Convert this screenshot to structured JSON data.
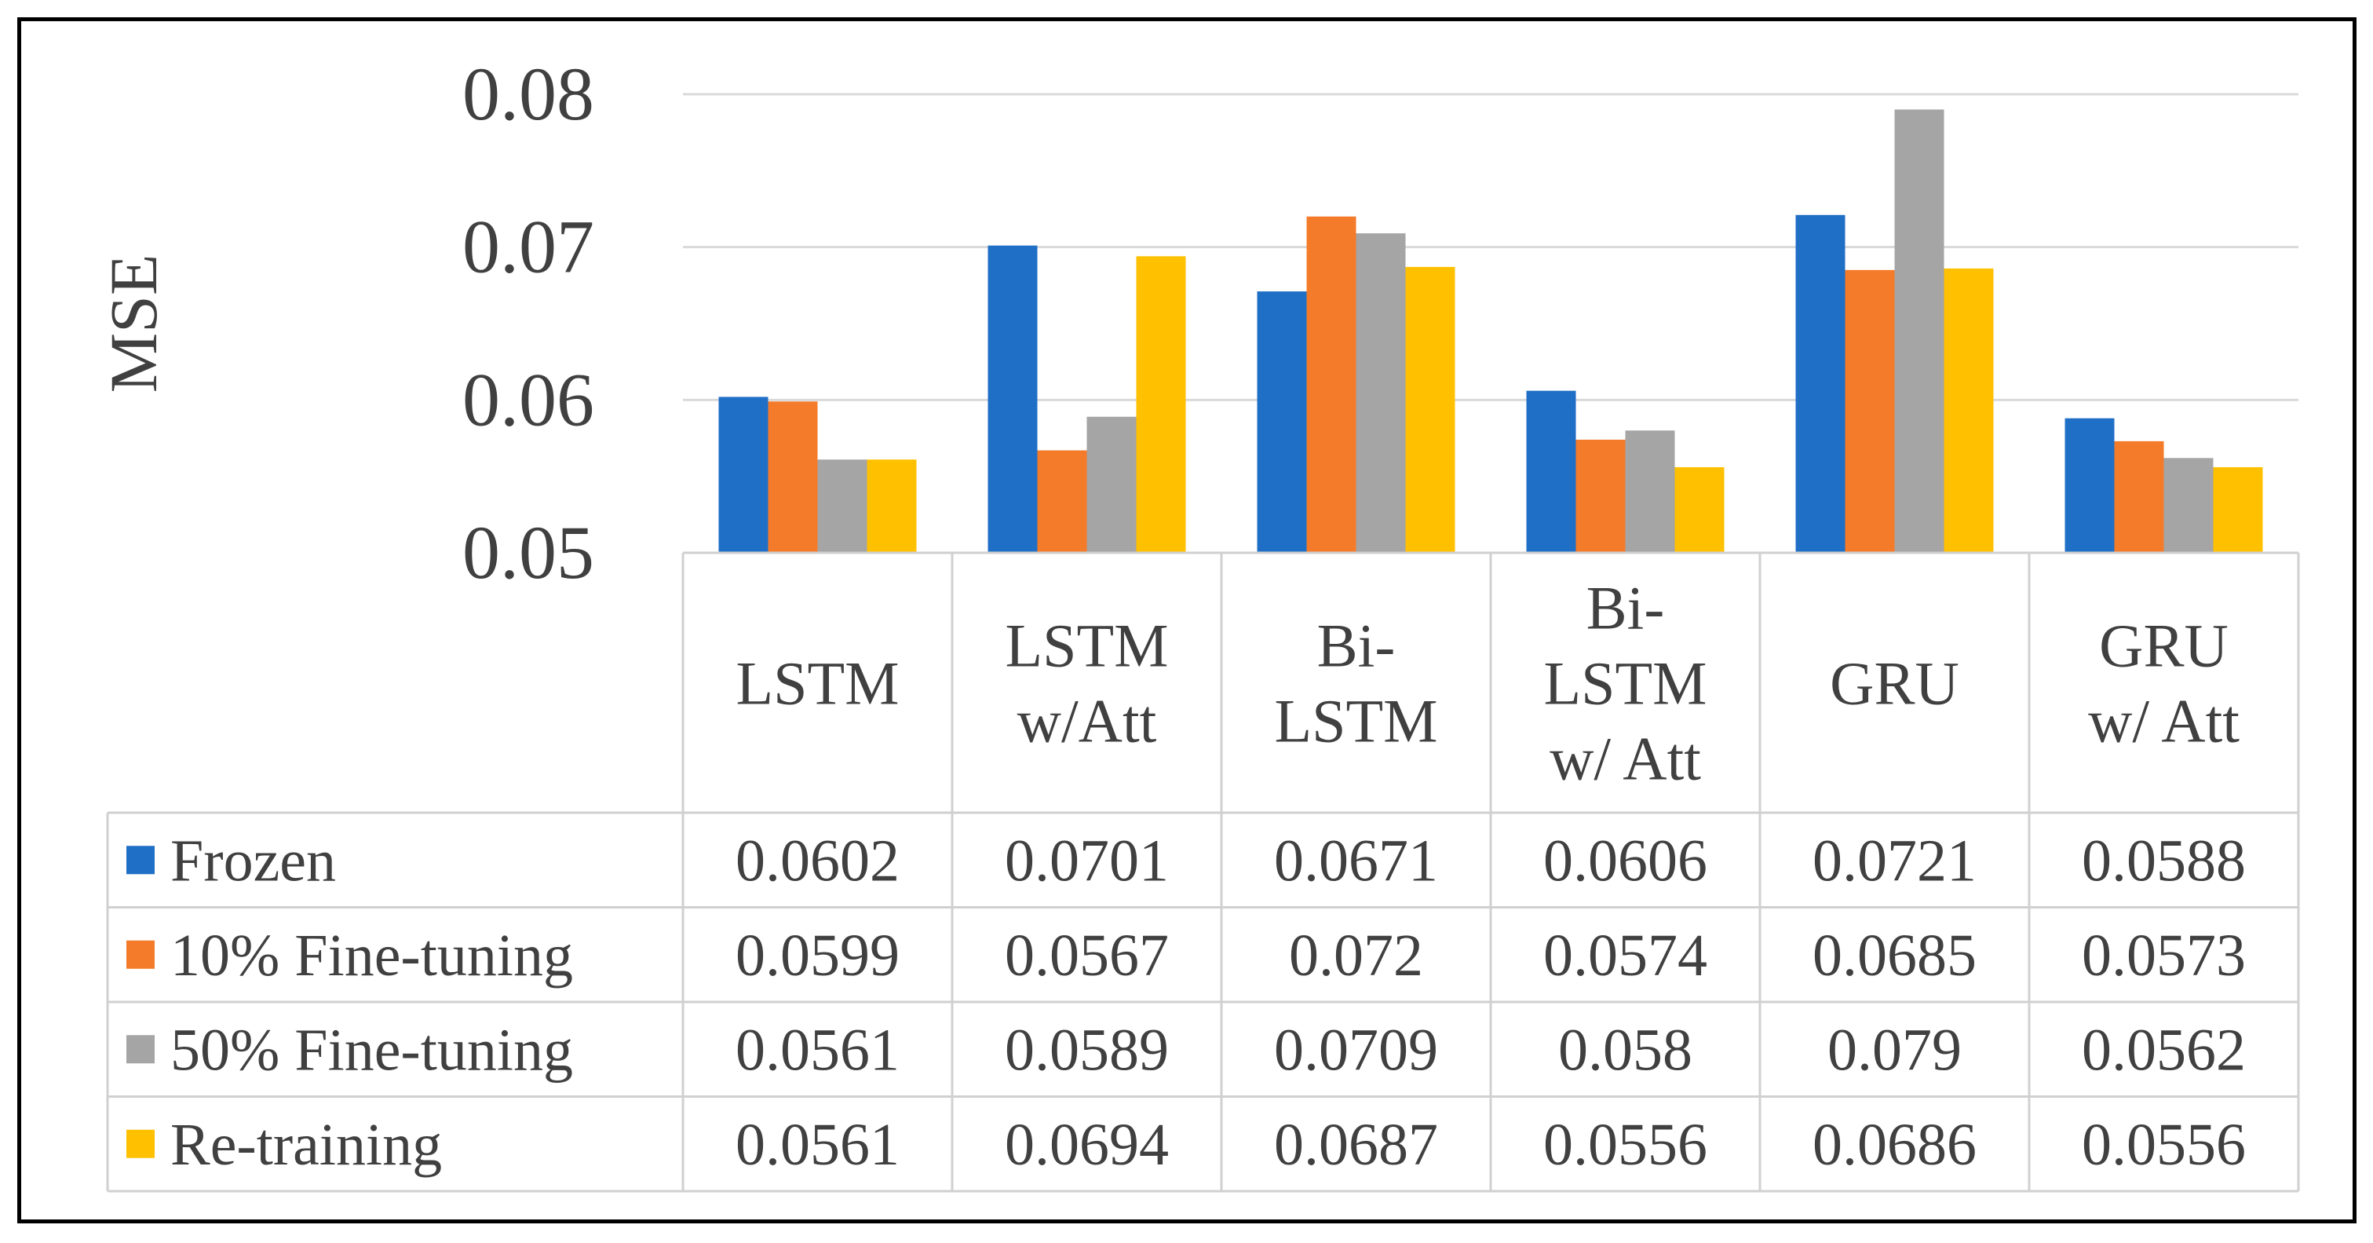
{
  "chart_data": {
    "type": "bar",
    "title": "",
    "xlabel": "",
    "ylabel": "MSE",
    "ylim": [
      0.05,
      0.08
    ],
    "yticks": [
      "0.05",
      "0.06",
      "0.07",
      "0.08"
    ],
    "grid": true,
    "legend": "data-table",
    "categories": [
      [
        "LSTM"
      ],
      [
        "LSTM",
        "w/Att"
      ],
      [
        "Bi-",
        "LSTM"
      ],
      [
        "Bi-",
        "LSTM",
        "w/ Att"
      ],
      [
        "GRU"
      ],
      [
        "GRU",
        "w/ Att"
      ]
    ],
    "series": [
      {
        "name": "Frozen",
        "color": "#1f6fc6",
        "values": [
          0.0602,
          0.0701,
          0.0671,
          0.0606,
          0.0721,
          0.0588
        ],
        "labels": [
          "0.0602",
          "0.0701",
          "0.0671",
          "0.0606",
          "0.0721",
          "0.0588"
        ]
      },
      {
        "name": "10% Fine-tuning",
        "color": "#f47b2a",
        "values": [
          0.0599,
          0.0567,
          0.072,
          0.0574,
          0.0685,
          0.0573
        ],
        "labels": [
          "0.0599",
          "0.0567",
          "0.072",
          "0.0574",
          "0.0685",
          "0.0573"
        ]
      },
      {
        "name": "50% Fine-tuning",
        "color": "#a5a5a5",
        "values": [
          0.0561,
          0.0589,
          0.0709,
          0.058,
          0.079,
          0.0562
        ],
        "labels": [
          "0.0561",
          "0.0589",
          "0.0709",
          "0.058",
          "0.079",
          "0.0562"
        ]
      },
      {
        "name": "Re-training",
        "color": "#ffc000",
        "values": [
          0.0561,
          0.0694,
          0.0687,
          0.0556,
          0.0686,
          0.0556
        ],
        "labels": [
          "0.0561",
          "0.0694",
          "0.0687",
          "0.0556",
          "0.0686",
          "0.0556"
        ]
      }
    ]
  }
}
